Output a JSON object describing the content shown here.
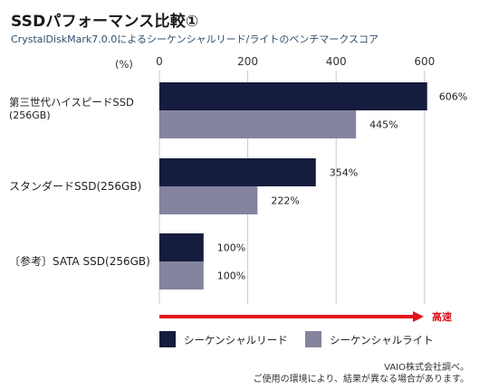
{
  "title": "SSDパフォーマンス比較①",
  "subtitle": "CrystalDiskMark7.0.0によるシーケンシャルリード/ライトのベンチマークスコア",
  "unit_label": "(%)",
  "arrow_label": "高速",
  "colors": {
    "read": "#161c3e",
    "write": "#84849f",
    "arrow": "#e0141e",
    "grid": "#c9c9c9"
  },
  "footnotes": [
    "VAIO株式会社調べ。",
    "ご使用の環境により、結果が異なる場合があります。"
  ],
  "chart_data": {
    "type": "bar",
    "orientation": "horizontal",
    "title": "SSDパフォーマンス比較①",
    "subtitle": "CrystalDiskMark7.0.0によるシーケンシャルリード/ライトのベンチマークスコア",
    "categories": [
      "第三世代ハイスピードSSD\n(256GB)",
      "スタンダードSSD(256GB)",
      "〔参考〕SATA SSD(256GB)"
    ],
    "series": [
      {
        "name": "シーケンシャルリード",
        "values": [
          606,
          354,
          100
        ],
        "labels": [
          "606%",
          "354%",
          "100%"
        ]
      },
      {
        "name": "シーケンシャルライト",
        "values": [
          445,
          222,
          100
        ],
        "labels": [
          "445%",
          "222%",
          "100%"
        ]
      }
    ],
    "xticks": [
      0,
      200,
      400,
      600
    ],
    "xlim": [
      0,
      640
    ],
    "grid": true,
    "legend_position": "bottom"
  }
}
